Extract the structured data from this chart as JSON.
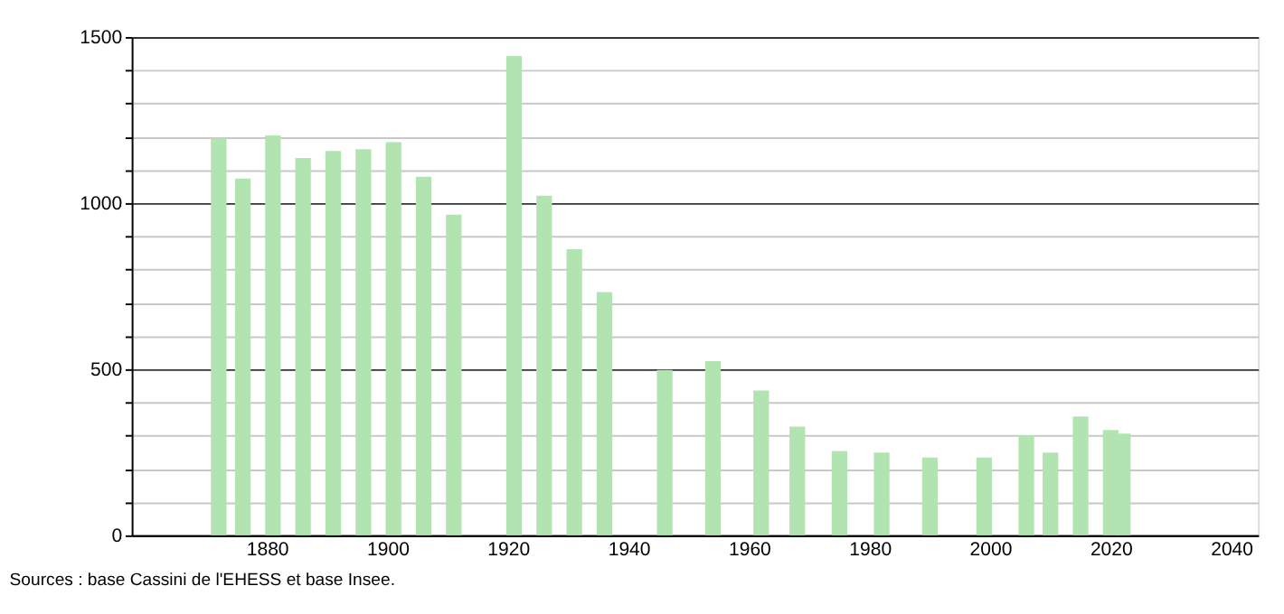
{
  "chart_data": {
    "type": "bar",
    "x": [
      1872,
      1876,
      1881,
      1886,
      1891,
      1896,
      1901,
      1906,
      1911,
      1921,
      1926,
      1931,
      1936,
      1946,
      1954,
      1962,
      1968,
      1975,
      1982,
      1990,
      1999,
      2006,
      2010,
      2015,
      2020,
      2022
    ],
    "values": [
      1194,
      1074,
      1204,
      1136,
      1157,
      1162,
      1183,
      1079,
      965,
      1443,
      1022,
      861,
      732,
      498,
      524,
      436,
      327,
      254,
      249,
      234,
      234,
      301,
      249,
      358,
      317,
      306
    ],
    "color": "#b1e4b1",
    "xlim": [
      1859,
      2043
    ],
    "xticks": [
      1880,
      1900,
      1920,
      1940,
      1960,
      1980,
      2000,
      2020,
      2040
    ],
    "ylim": [
      0,
      1500
    ],
    "yticks": [
      0,
      {
        "value": 100,
        "label": null
      },
      {
        "value": 200,
        "label": null
      },
      {
        "value": 300,
        "label": null
      },
      {
        "value": 400,
        "label": null
      },
      500,
      {
        "value": 600,
        "label": null
      },
      {
        "value": 700,
        "label": null
      },
      {
        "value": 800,
        "label": null
      },
      {
        "value": 900,
        "label": null
      },
      1000,
      {
        "value": 1100,
        "label": null
      },
      {
        "value": 1200,
        "label": null
      },
      {
        "value": 1300,
        "label": null
      },
      {
        "value": 1400,
        "label": null
      },
      1500
    ],
    "grid": "y",
    "annotations": [
      "Sources : base Cassini de l'EHESS et base Insee."
    ]
  }
}
